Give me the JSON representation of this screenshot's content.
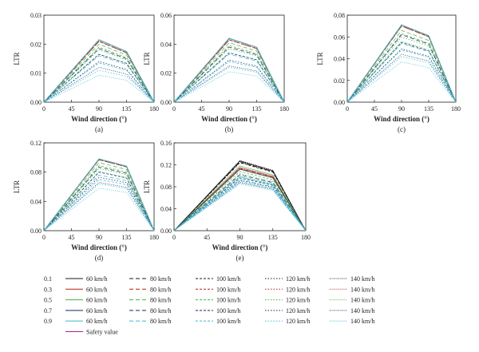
{
  "chart_data": [
    {
      "type": "line",
      "caption": "(a)",
      "xlabel": "Wind direction (°)",
      "ylabel": "LTR",
      "x": [
        0,
        45,
        90,
        135,
        180
      ],
      "xlim": [
        0,
        180
      ],
      "ylim": [
        0,
        0.03
      ],
      "yticks": [
        0,
        0.01,
        0.02,
        0.03
      ],
      "ytick_labels": [
        "0.00",
        "0.01",
        "0.02",
        "0.03"
      ],
      "peaks": {
        "0.1": [
          0.0215,
          0.021,
          0.021,
          0.0215,
          0.0215
        ],
        "0.3": [
          0.0215,
          0.021,
          0.021,
          0.0215,
          0.0215
        ],
        "0.5": [
          0.0215,
          0.02,
          0.019,
          0.018,
          0.0165
        ],
        "0.7": [
          0.0215,
          0.0185,
          0.0165,
          0.014,
          0.012
        ],
        "0.9": [
          0.0215,
          0.016,
          0.0135,
          0.011,
          0.0093
        ]
      },
      "ratio135": 0.81
    },
    {
      "type": "line",
      "caption": "(b)",
      "xlabel": "Wind direction (°)",
      "ylabel": "LTR",
      "x": [
        0,
        45,
        90,
        135,
        180
      ],
      "xlim": [
        0,
        180
      ],
      "ylim": [
        0,
        0.06
      ],
      "yticks": [
        0,
        0.02,
        0.04,
        0.06
      ],
      "ytick_labels": [
        "0.00",
        "0.02",
        "0.04",
        "0.06"
      ],
      "peaks": {
        "0.1": [
          0.044,
          0.043,
          0.043,
          0.044,
          0.044
        ],
        "0.3": [
          0.044,
          0.043,
          0.043,
          0.044,
          0.044
        ],
        "0.5": [
          0.044,
          0.041,
          0.039,
          0.037,
          0.034
        ],
        "0.7": [
          0.044,
          0.038,
          0.034,
          0.029,
          0.025
        ],
        "0.9": [
          0.044,
          0.033,
          0.028,
          0.024,
          0.021
        ]
      },
      "ratio135": 0.86
    },
    {
      "type": "line",
      "caption": "(c)",
      "xlabel": "Wind direction (°)",
      "ylabel": "LTR",
      "x": [
        0,
        45,
        90,
        135,
        180
      ],
      "xlim": [
        0,
        180
      ],
      "ylim": [
        0,
        0.08
      ],
      "yticks": [
        0,
        0.02,
        0.04,
        0.06,
        0.08
      ],
      "ytick_labels": [
        "0.00",
        "0.02",
        "0.04",
        "0.06",
        "0.08"
      ],
      "peaks": {
        "0.1": [
          0.071,
          0.07,
          0.07,
          0.071,
          0.071
        ],
        "0.3": [
          0.071,
          0.07,
          0.07,
          0.071,
          0.071
        ],
        "0.5": [
          0.071,
          0.066,
          0.063,
          0.06,
          0.056
        ],
        "0.7": [
          0.071,
          0.062,
          0.055,
          0.049,
          0.044
        ],
        "0.9": [
          0.071,
          0.054,
          0.048,
          0.042,
          0.037
        ]
      },
      "ratio135": 0.86
    },
    {
      "type": "line",
      "caption": "(d)",
      "xlabel": "Wind direction (°)",
      "ylabel": "LTR",
      "x": [
        0,
        45,
        90,
        135,
        180
      ],
      "xlim": [
        0,
        180
      ],
      "ylim": [
        0,
        0.12
      ],
      "yticks": [
        0,
        0.04,
        0.08,
        0.12
      ],
      "ytick_labels": [
        "0.00",
        "0.04",
        "0.08",
        "0.12"
      ],
      "peaks": {
        "0.1": [
          0.098,
          0.097,
          0.097,
          0.098,
          0.098
        ],
        "0.3": [
          0.098,
          0.097,
          0.097,
          0.098,
          0.098
        ],
        "0.5": [
          0.098,
          0.093,
          0.089,
          0.085,
          0.081
        ],
        "0.7": [
          0.098,
          0.087,
          0.08,
          0.073,
          0.066
        ],
        "0.9": [
          0.098,
          0.076,
          0.07,
          0.064,
          0.058
        ]
      },
      "ratio135": 0.9
    },
    {
      "type": "line",
      "caption": "(e)",
      "xlabel": "Wind direction (°)",
      "ylabel": "LTR",
      "x": [
        0,
        45,
        90,
        135,
        180
      ],
      "xlim": [
        0,
        180
      ],
      "ylim": [
        0,
        0.16
      ],
      "yticks": [
        0,
        0.04,
        0.08,
        0.12,
        0.16
      ],
      "ytick_labels": [
        "0.00",
        "0.04",
        "0.08",
        "0.12",
        "0.16"
      ],
      "peaks": {
        "0.1": [
          0.127,
          0.125,
          0.124,
          0.126,
          0.128
        ],
        "0.3": [
          0.115,
          0.113,
          0.112,
          0.114,
          0.115
        ],
        "0.5": [
          0.118,
          0.112,
          0.108,
          0.104,
          0.1
        ],
        "0.7": [
          0.112,
          0.102,
          0.096,
          0.092,
          0.088
        ],
        "0.9": [
          0.098,
          0.093,
          0.09,
          0.087,
          0.085
        ]
      },
      "ratio135": 0.86
    }
  ],
  "legend": {
    "coefficients": [
      "0.1",
      "0.3",
      "0.5",
      "0.7",
      "0.9"
    ],
    "speeds": [
      "60 km/h",
      "80 km/h",
      "100 km/h",
      "120 km/h",
      "140 km/h"
    ],
    "colors": {
      "0.1": "#1a1a1a",
      "0.3": "#c0392b",
      "0.5": "#5cb85c",
      "0.7": "#2c3e70",
      "0.9": "#4fc1d6"
    },
    "dash_styles": [
      "solid",
      "dash",
      "shortdash",
      "dot",
      "densedot"
    ],
    "safety_label": "Safety value",
    "safety_color": "#b0207e"
  }
}
